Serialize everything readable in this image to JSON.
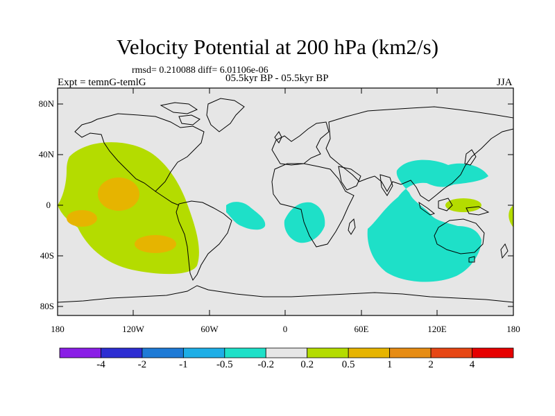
{
  "title": "Velocity Potential at 200 hPa (km2/s)",
  "stats": "rmsd= 0.210088 diff= 6.01106e-06",
  "period": "05.5kyr BP - 05.5kyr BP",
  "expt": "Expt = temnG-temlG",
  "season": "JJA",
  "y_ticks": [
    "80N",
    "40N",
    "0",
    "40S",
    "80S"
  ],
  "x_ticks": [
    "180",
    "120W",
    "60W",
    "0",
    "60E",
    "120E",
    "180"
  ],
  "colorbar": {
    "labels": [
      "-4",
      "-2",
      "-1",
      "-0.5",
      "-0.2",
      "0.2",
      "0.5",
      "1",
      "2",
      "4"
    ],
    "colors": [
      "#8a1ee6",
      "#2d2dd2",
      "#1e7ad6",
      "#1eaee6",
      "#1ee0c8",
      "#e6e6e6",
      "#b4dc00",
      "#e6b400",
      "#e68c14",
      "#e64614",
      "#e60000"
    ]
  },
  "colors": {
    "land_ocean_background": "#e6e6e6",
    "positive_0_2_0_5": "#b4dc00",
    "positive_0_5_1": "#e6b400",
    "negative_0_2_0_5": "#1ee0c8"
  }
}
